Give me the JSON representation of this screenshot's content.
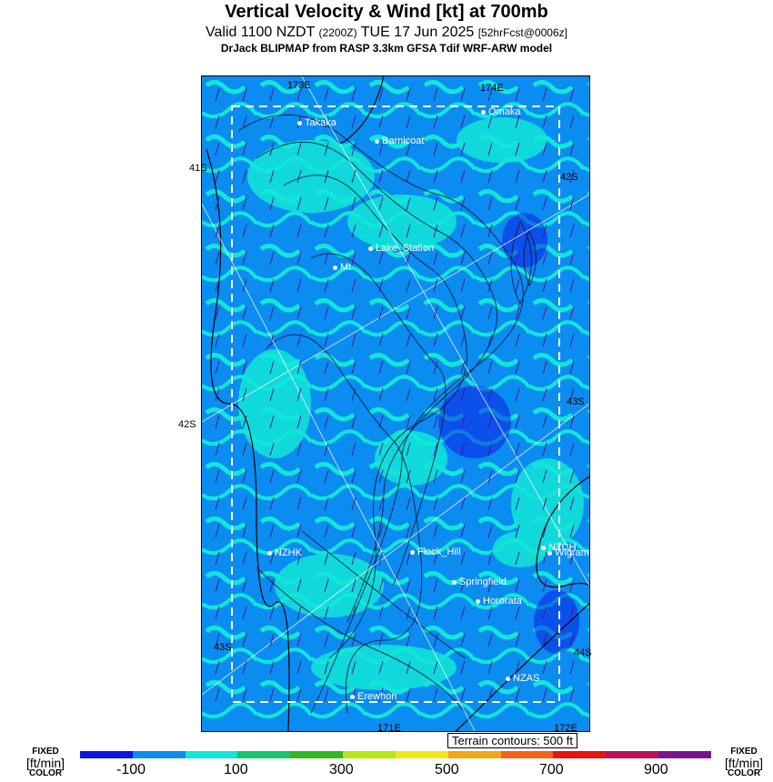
{
  "header": {
    "title": "Vertical Velocity & Wind [kt] at 700mb",
    "valid_main": "Valid 1100 NZDT",
    "valid_utc": "(2200Z)",
    "valid_date": "TUE 17 Jun 2025",
    "forecast": "[52hrFcst@0006z]",
    "model": "DrJack BLIPMAP from RASP 3.3km GFSA Tdif WRF-ARW model"
  },
  "grid_labels": {
    "lon_173": "173E",
    "lon_174": "174E",
    "lat_41": "41S",
    "lat_42_left": "42S",
    "lat_42_right": "42S",
    "lat_43_right": "43S",
    "lat_43_left": "43S",
    "lat_44": "44S",
    "lon_171": "171E",
    "lon_172": "172E"
  },
  "places": [
    {
      "name": "Takaka"
    },
    {
      "name": "Omaka"
    },
    {
      "name": "Barnicoat"
    },
    {
      "name": "Lake_Station"
    },
    {
      "name": "Mt"
    },
    {
      "name": "NZHK"
    },
    {
      "name": "Flock_Hill"
    },
    {
      "name": "NZCH"
    },
    {
      "name": "Wigram"
    },
    {
      "name": "Springfield"
    },
    {
      "name": "Hororata"
    },
    {
      "name": "NZAS"
    },
    {
      "name": "Erewhon"
    }
  ],
  "terrain_note": "Terrain contours: 500 ft",
  "colorbar": {
    "fixed": "FIXED",
    "unit": "[ft/min]",
    "color": "COLOR",
    "ticks": [
      "-100",
      "100",
      "300",
      "500",
      "700",
      "900"
    ],
    "colors": [
      "#0b14e6",
      "#0a8cf0",
      "#12e6d8",
      "#14c46e",
      "#2fb81f",
      "#b8e614",
      "#f5e61a",
      "#f5a612",
      "#f46414",
      "#e8140e",
      "#b8145a",
      "#7a1490"
    ]
  }
}
